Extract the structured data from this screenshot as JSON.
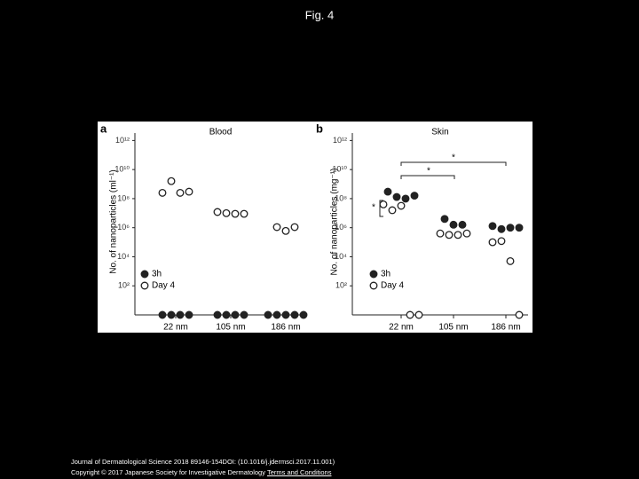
{
  "title": "Fig. 4",
  "chart_data": [
    {
      "type": "strip",
      "panel": "a",
      "title": "Blood",
      "y_label": "No. of nanoparticles (ml⁻¹)",
      "categories": [
        "22 nm",
        "105 nm",
        "186 nm"
      ],
      "log": true,
      "ylim": [
        1,
        10000000000000.0
      ],
      "yticks": [
        {
          "value": 100,
          "label": "10²"
        },
        {
          "value": 10000,
          "label": "10⁴"
        },
        {
          "value": 1000000,
          "label": "10⁶"
        },
        {
          "value": 100000000,
          "label": "10⁸"
        },
        {
          "value": 10000000000,
          "label": "10¹⁰"
        },
        {
          "value": 1000000000000,
          "label": "10¹²"
        }
      ],
      "annotations": [],
      "series": [
        {
          "name": "3h",
          "color": "#222222",
          "filled": true,
          "x": [
            "22 nm",
            "22 nm",
            "22 nm",
            "22 nm",
            "105 nm",
            "105 nm",
            "105 nm",
            "105 nm",
            "186 nm",
            "186 nm",
            "186 nm",
            "186 nm",
            "186 nm"
          ],
          "values": [
            1,
            1,
            1,
            1,
            1,
            1,
            1,
            1,
            1,
            1,
            1,
            1,
            1
          ]
        },
        {
          "name": "Day 4",
          "color": "#222222",
          "filled": false,
          "x": [
            "22 nm",
            "22 nm",
            "22 nm",
            "22 nm",
            "105 nm",
            "105 nm",
            "105 nm",
            "105 nm",
            "186 nm",
            "186 nm",
            "186 nm"
          ],
          "values": [
            250000000,
            1600000000,
            250000000,
            300000000,
            12000000,
            10000000,
            9000000,
            9000000,
            1100000,
            600000,
            1100000
          ]
        }
      ]
    },
    {
      "type": "strip",
      "panel": "b",
      "title": "Skin",
      "y_label": "No. of nanoparticles (mg⁻¹)",
      "categories": [
        "22 nm",
        "105 nm",
        "186 nm"
      ],
      "log": true,
      "ylim": [
        1,
        10000000000000.0
      ],
      "yticks": [
        {
          "value": 100,
          "label": "10²"
        },
        {
          "value": 10000,
          "label": "10⁴"
        },
        {
          "value": 1000000,
          "label": "10⁶"
        },
        {
          "value": 100000000,
          "label": "10⁸"
        },
        {
          "value": 10000000000,
          "label": "10¹⁰"
        },
        {
          "value": 1000000000000,
          "label": "10¹²"
        }
      ],
      "annotations": [
        "*",
        "*",
        "*"
      ],
      "series": [
        {
          "name": "3h",
          "color": "#222222",
          "filled": true,
          "x": [
            "22 nm",
            "22 nm",
            "22 nm",
            "22 nm",
            "105 nm",
            "105 nm",
            "105 nm",
            "186 nm",
            "186 nm",
            "186 nm",
            "186 nm"
          ],
          "values": [
            300000000,
            130000000,
            100000000,
            160000000,
            4000000,
            1600000,
            1600000,
            1300000,
            800000,
            1000000,
            1000000
          ]
        },
        {
          "name": "Day 4",
          "color": "#222222",
          "filled": false,
          "x": [
            "22 nm",
            "22 nm",
            "22 nm",
            "22 nm",
            "22 nm",
            "105 nm",
            "105 nm",
            "105 nm",
            "105 nm",
            "186 nm",
            "186 nm",
            "186 nm",
            "186 nm"
          ],
          "values": [
            40000000,
            16000000,
            32000000,
            1,
            1,
            400000,
            320000,
            320000,
            400000,
            100000,
            120000,
            5000,
            1
          ]
        }
      ]
    }
  ],
  "footer": {
    "citation": "Journal of Dermatological Science 2018 89146-154DOI: (10.1016/j.jdermsci.2017.11.001)",
    "copyright": "Copyright © 2017 Japanese Society for Investigative Dermatology",
    "link": "Terms and Conditions"
  }
}
